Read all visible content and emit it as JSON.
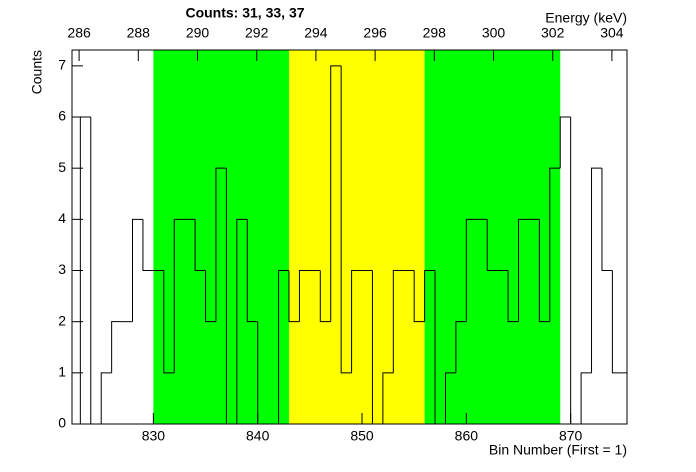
{
  "chart_data": {
    "type": "histogram",
    "title": "Counts:   31,   33,   37",
    "xlabel": "Bin Number (First = 1)",
    "ylabel": "Counts",
    "x2label": "Energy (keV)",
    "bins": [
      822,
      823,
      824,
      825,
      826,
      827,
      828,
      829,
      830,
      831,
      832,
      833,
      834,
      835,
      836,
      837,
      838,
      839,
      840,
      841,
      842,
      843,
      844,
      845,
      846,
      847,
      848,
      849,
      850,
      851,
      852,
      853,
      854,
      855,
      856,
      857,
      858,
      859,
      860,
      861,
      862,
      863,
      864,
      865,
      866,
      867,
      868,
      869,
      870,
      871,
      872,
      873,
      874,
      875,
      876
    ],
    "values": [
      0,
      6,
      0,
      1,
      2,
      2,
      4,
      3,
      3,
      1,
      4,
      4,
      3,
      2,
      5,
      0,
      4,
      2,
      0,
      0,
      3,
      2,
      3,
      3,
      2,
      7,
      1,
      3,
      3,
      0,
      1,
      3,
      3,
      2,
      3,
      0,
      1,
      2,
      4,
      4,
      3,
      3,
      2,
      4,
      4,
      2,
      5,
      6,
      0,
      1,
      5,
      3,
      1,
      1
    ],
    "color": "#000000",
    "bands": [
      {
        "from": 830,
        "to": 843,
        "color": "#00ff00"
      },
      {
        "from": 843,
        "to": 856,
        "color": "#ffff00"
      },
      {
        "from": 856,
        "to": 869,
        "color": "#00ff00"
      }
    ],
    "xlim": [
      822.2,
      875.4
    ],
    "xticks": [
      830,
      840,
      850,
      860,
      870
    ],
    "x2lim": [
      285.76,
      304.51
    ],
    "x2ticks": [
      286,
      288,
      290,
      292,
      294,
      296,
      298,
      300,
      302,
      304
    ],
    "ylim": [
      0,
      7.31
    ],
    "yticks": [
      0,
      1,
      2,
      3,
      4,
      5,
      6,
      7
    ]
  }
}
